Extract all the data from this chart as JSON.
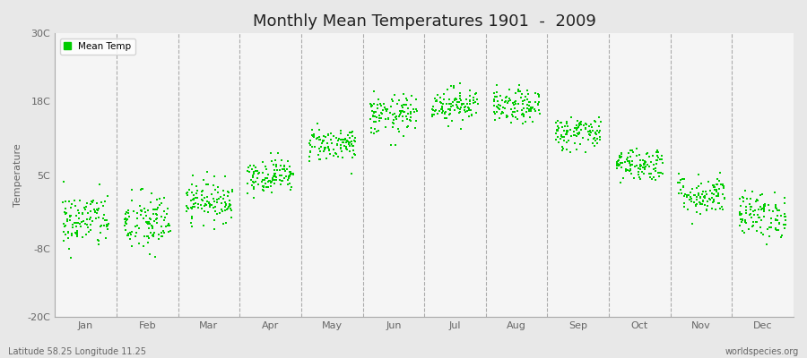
{
  "title": "Monthly Mean Temperatures 1901  -  2009",
  "ylabel": "Temperature",
  "subtitle_left": "Latitude 58.25 Longitude 11.25",
  "subtitle_right": "worldspecies.org",
  "ylim": [
    -20,
    30
  ],
  "yticks": [
    -20,
    -8,
    5,
    18,
    30
  ],
  "ytick_labels": [
    "-20C",
    "-8C",
    "5C",
    "18C",
    "30C"
  ],
  "months": [
    "Jan",
    "Feb",
    "Mar",
    "Apr",
    "May",
    "Jun",
    "Jul",
    "Aug",
    "Sep",
    "Oct",
    "Nov",
    "Dec"
  ],
  "dot_color": "#00cc00",
  "background_color": "#e8e8e8",
  "plot_bg_color": "#f5f5f5",
  "legend_label": "Mean Temp",
  "monthly_means": [
    -3.0,
    -3.5,
    0.5,
    5.0,
    10.5,
    15.5,
    17.5,
    17.0,
    12.5,
    7.0,
    1.5,
    -2.0
  ],
  "monthly_stds": [
    2.5,
    2.8,
    1.8,
    1.5,
    1.5,
    1.8,
    1.5,
    1.5,
    1.5,
    1.5,
    1.8,
    2.0
  ],
  "seed": 42,
  "n_years": 109
}
